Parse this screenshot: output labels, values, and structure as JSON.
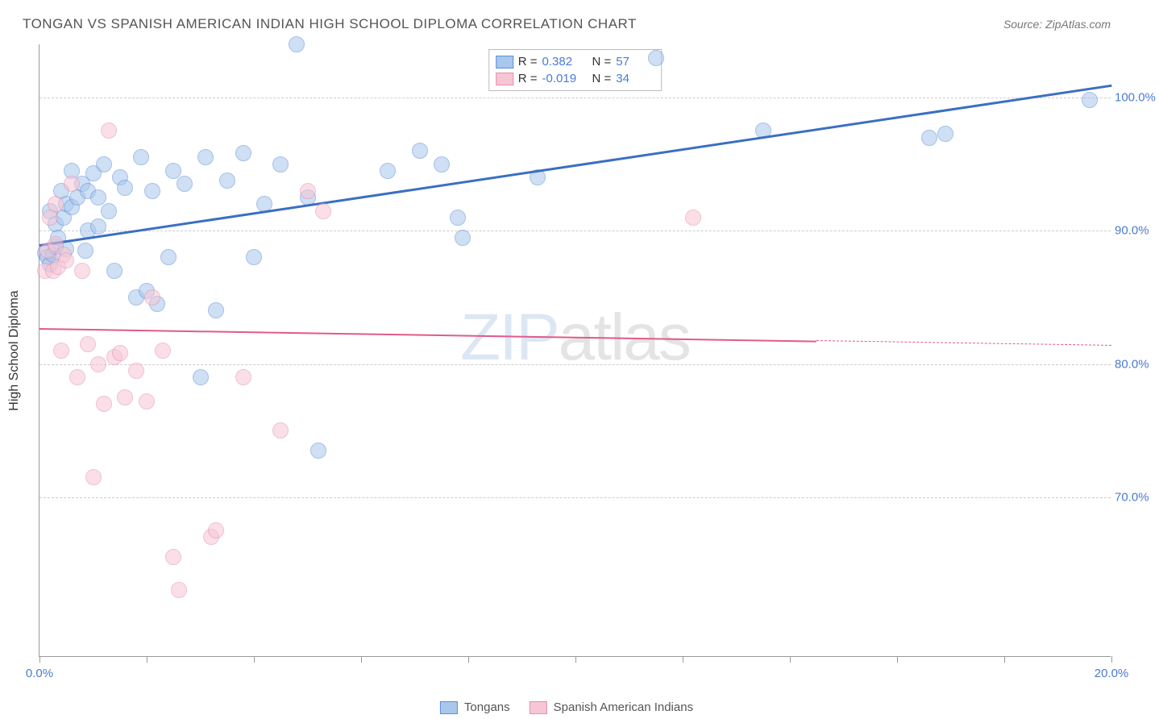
{
  "title": "TONGAN VS SPANISH AMERICAN INDIAN HIGH SCHOOL DIPLOMA CORRELATION CHART",
  "source": "Source: ZipAtlas.com",
  "watermark": {
    "part1": "ZIP",
    "part2": "atlas"
  },
  "chart": {
    "type": "scatter",
    "ylabel": "High School Diploma",
    "background_color": "#ffffff",
    "grid_color": "#cccccc",
    "axis_color": "#999999",
    "xlim": [
      0,
      20
    ],
    "ylim": [
      58,
      104
    ],
    "xticks": [
      0,
      2,
      4,
      6,
      8,
      10,
      12,
      14,
      16,
      18,
      20
    ],
    "xtick_labels": {
      "0": "0.0%",
      "20": "20.0%"
    },
    "yticks": [
      70,
      80,
      90,
      100
    ],
    "ytick_labels": {
      "70": "70.0%",
      "80": "80.0%",
      "90": "90.0%",
      "100": "100.0%"
    },
    "marker_radius": 10,
    "marker_opacity": 0.55,
    "label_fontsize": 16,
    "tick_fontsize": 15,
    "tick_color": "#4a7bd0"
  },
  "series": [
    {
      "name": "Tongans",
      "fill": "#a9c6ec",
      "stroke": "#5b8fd6",
      "line_color": "#3b6fc2",
      "line_width": 2.5,
      "R": "0.382",
      "N": "57",
      "trend": {
        "x1": 0,
        "y1": 89.0,
        "x2": 20,
        "y2": 101.0,
        "solid_until_x": 20
      },
      "points": [
        [
          0.1,
          88.3
        ],
        [
          0.15,
          88.0
        ],
        [
          0.2,
          87.5
        ],
        [
          0.2,
          91.5
        ],
        [
          0.25,
          88.2
        ],
        [
          0.3,
          90.5
        ],
        [
          0.3,
          88.8
        ],
        [
          0.35,
          89.5
        ],
        [
          0.4,
          93.0
        ],
        [
          0.45,
          91.0
        ],
        [
          0.5,
          92.0
        ],
        [
          0.5,
          88.6
        ],
        [
          0.6,
          94.5
        ],
        [
          0.6,
          91.8
        ],
        [
          0.7,
          92.5
        ],
        [
          0.8,
          93.5
        ],
        [
          0.85,
          88.5
        ],
        [
          0.9,
          90.0
        ],
        [
          0.9,
          93.0
        ],
        [
          1.0,
          94.3
        ],
        [
          1.1,
          92.5
        ],
        [
          1.1,
          90.3
        ],
        [
          1.2,
          95.0
        ],
        [
          1.3,
          91.5
        ],
        [
          1.4,
          87.0
        ],
        [
          1.5,
          94.0
        ],
        [
          1.6,
          93.2
        ],
        [
          1.8,
          85.0
        ],
        [
          1.9,
          95.5
        ],
        [
          2.0,
          85.5
        ],
        [
          2.1,
          93.0
        ],
        [
          2.2,
          84.5
        ],
        [
          2.4,
          88.0
        ],
        [
          2.5,
          94.5
        ],
        [
          2.7,
          93.5
        ],
        [
          3.0,
          79.0
        ],
        [
          3.1,
          95.5
        ],
        [
          3.3,
          84.0
        ],
        [
          3.5,
          93.8
        ],
        [
          3.8,
          95.8
        ],
        [
          4.0,
          88.0
        ],
        [
          4.2,
          92.0
        ],
        [
          4.5,
          95.0
        ],
        [
          4.8,
          104.0
        ],
        [
          5.0,
          92.5
        ],
        [
          5.2,
          73.5
        ],
        [
          6.5,
          94.5
        ],
        [
          7.1,
          96.0
        ],
        [
          7.5,
          95.0
        ],
        [
          7.8,
          91.0
        ],
        [
          7.9,
          89.5
        ],
        [
          9.3,
          94.0
        ],
        [
          11.5,
          103.0
        ],
        [
          13.5,
          97.5
        ],
        [
          16.6,
          97.0
        ],
        [
          16.9,
          97.3
        ],
        [
          19.6,
          99.8
        ]
      ]
    },
    {
      "name": "Spanish American Indians",
      "fill": "#f6c6d4",
      "stroke": "#e58fb0",
      "line_color": "#e05a8a",
      "line_width": 1.8,
      "R": "-0.019",
      "N": "34",
      "trend": {
        "x1": 0,
        "y1": 82.7,
        "x2": 20,
        "y2": 81.4,
        "solid_until_x": 14.5
      },
      "points": [
        [
          0.1,
          87.0
        ],
        [
          0.15,
          88.5
        ],
        [
          0.2,
          91.0
        ],
        [
          0.25,
          87.0
        ],
        [
          0.3,
          92.0
        ],
        [
          0.3,
          89.0
        ],
        [
          0.35,
          87.3
        ],
        [
          0.4,
          81.0
        ],
        [
          0.45,
          88.2
        ],
        [
          0.5,
          87.8
        ],
        [
          0.6,
          93.5
        ],
        [
          0.7,
          79.0
        ],
        [
          0.8,
          87.0
        ],
        [
          0.9,
          81.5
        ],
        [
          1.0,
          71.5
        ],
        [
          1.1,
          80.0
        ],
        [
          1.2,
          77.0
        ],
        [
          1.3,
          97.5
        ],
        [
          1.4,
          80.5
        ],
        [
          1.5,
          80.8
        ],
        [
          1.6,
          77.5
        ],
        [
          1.8,
          79.5
        ],
        [
          2.0,
          77.2
        ],
        [
          2.1,
          85.0
        ],
        [
          2.3,
          81.0
        ],
        [
          2.5,
          65.5
        ],
        [
          2.6,
          63.0
        ],
        [
          3.2,
          67.0
        ],
        [
          3.3,
          67.5
        ],
        [
          3.8,
          79.0
        ],
        [
          4.5,
          75.0
        ],
        [
          5.0,
          93.0
        ],
        [
          5.3,
          91.5
        ],
        [
          12.2,
          91.0
        ]
      ]
    }
  ],
  "legend": {
    "items": [
      {
        "label": "Tongans",
        "fill": "#a9c6ec",
        "stroke": "#5b8fd6"
      },
      {
        "label": "Spanish American Indians",
        "fill": "#f6c6d4",
        "stroke": "#e58fb0"
      }
    ]
  },
  "stats_box": {
    "rows": [
      {
        "fill": "#a9c6ec",
        "stroke": "#5b8fd6",
        "R_label": "R =",
        "R": "0.382",
        "N_label": "N =",
        "N": "57"
      },
      {
        "fill": "#f6c6d4",
        "stroke": "#e58fb0",
        "R_label": "R =",
        "R": "-0.019",
        "N_label": "N =",
        "N": "34"
      }
    ]
  }
}
